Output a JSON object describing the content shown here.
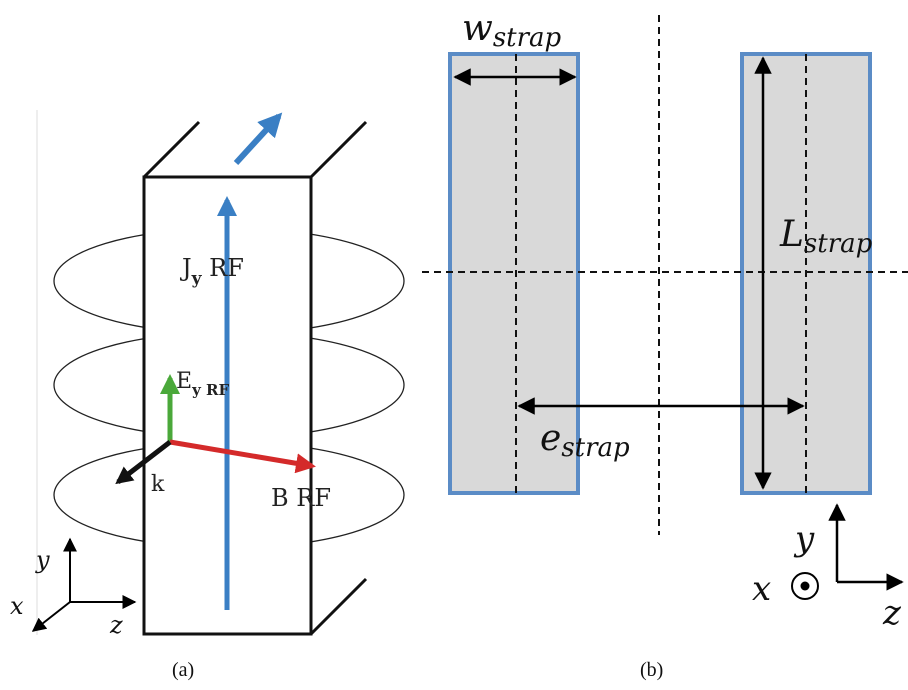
{
  "panel_a": {
    "caption": "(a)",
    "current_label": {
      "main": "J",
      "sub": "y",
      "suffix": " RF"
    },
    "efield_label": {
      "main": "E",
      "sub": "y RF"
    },
    "wave_label": "k",
    "bfield_label": "B RF",
    "axes": {
      "y": "y",
      "x": "x",
      "z": "z"
    },
    "colors": {
      "current": "#3a7fc4",
      "efield": "#4aa83a",
      "bfield": "#d42a2a",
      "wave": "#111111"
    }
  },
  "panel_b": {
    "caption": "(b)",
    "width_label": {
      "main": "w",
      "sub": "strap"
    },
    "length_label": {
      "main": "L",
      "sub": "strap"
    },
    "separation_label": {
      "main": "e",
      "sub": "strap"
    },
    "axes": {
      "y": "y",
      "x": "x",
      "z": "z"
    },
    "colors": {
      "strap_fill": "#d9d9d9",
      "strap_border": "#5b8cc6"
    }
  }
}
